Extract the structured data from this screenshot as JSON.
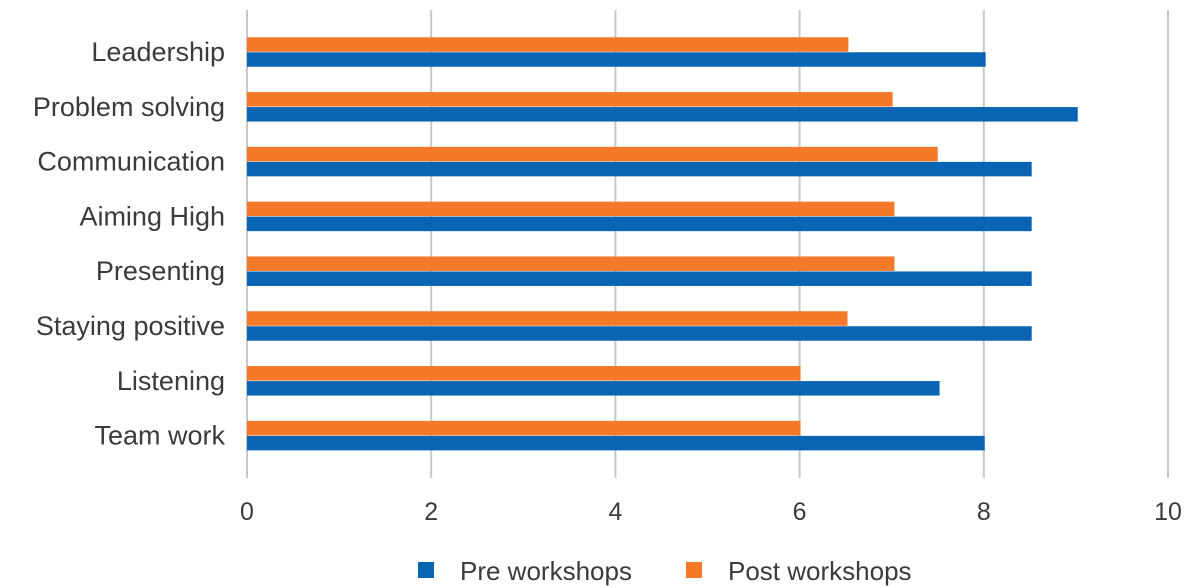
{
  "chart_data": {
    "type": "bar",
    "orientation": "horizontal",
    "categories": [
      "Leadership",
      "Problem solving",
      "Communication",
      "Aiming High",
      "Presenting",
      "Staying positive",
      "Listening",
      "Team work"
    ],
    "series": [
      {
        "name": "Pre workshops",
        "color": "#0a64b4",
        "values": [
          8.02,
          9.02,
          8.52,
          8.52,
          8.52,
          8.52,
          7.52,
          8.01
        ]
      },
      {
        "name": "Post workshops",
        "color": "#f47a2a",
        "values": [
          6.53,
          7.01,
          7.5,
          7.03,
          7.03,
          6.52,
          6.01,
          6.01
        ]
      }
    ],
    "xlim": [
      0,
      10
    ],
    "xticks": [
      "0",
      "2",
      "4",
      "6",
      "8",
      "10"
    ],
    "grid": true,
    "grid_color": "#c8c8c8",
    "legend_position": "bottom-center"
  }
}
